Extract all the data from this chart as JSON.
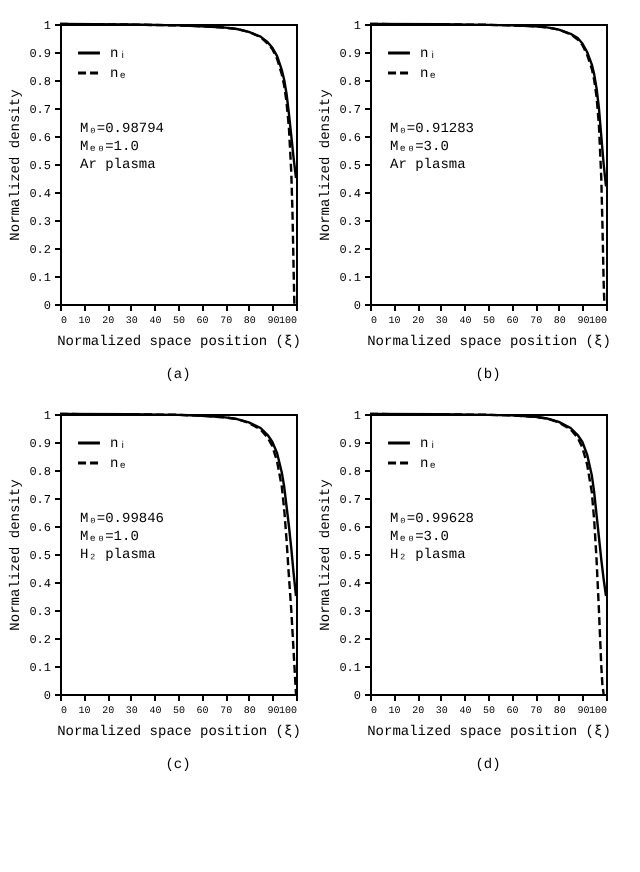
{
  "chart_data": [
    {
      "type": "line",
      "title": "(a)",
      "xlabel": "Normalized space position (ξ)",
      "ylabel": "Normalized density",
      "annotations": [
        "M₀=0.98794",
        "Mₑ₀=1.0",
        "Ar plasma"
      ],
      "xlim": [
        0,
        100
      ],
      "ylim": [
        0,
        1
      ],
      "xticks": [
        0,
        10,
        20,
        30,
        40,
        50,
        60,
        70,
        80,
        90,
        100
      ],
      "yticks": [
        0,
        0.1,
        0.2,
        0.3,
        0.4,
        0.5,
        0.6,
        0.7,
        0.8,
        0.9,
        1
      ],
      "grid": false,
      "legend": "top left",
      "marker": "none",
      "series": [
        {
          "name": "nᵢ",
          "color": "#000000",
          "line_style": "solid",
          "x": [
            0,
            30,
            50,
            60,
            70,
            75,
            80,
            85,
            88,
            90,
            92,
            94,
            95,
            96,
            97,
            98,
            99,
            100
          ],
          "values": [
            1,
            0.998,
            0.995,
            0.992,
            0.987,
            0.982,
            0.972,
            0.955,
            0.935,
            0.915,
            0.885,
            0.835,
            0.8,
            0.75,
            0.68,
            0.6,
            0.52,
            0.45
          ]
        },
        {
          "name": "nₑ",
          "color": "#000000",
          "line_style": "dashed",
          "x": [
            0,
            30,
            50,
            60,
            70,
            75,
            80,
            85,
            88,
            90,
            92,
            94,
            95,
            96,
            97,
            98,
            98.5,
            99,
            99.3
          ],
          "values": [
            1,
            0.998,
            0.995,
            0.992,
            0.987,
            0.982,
            0.972,
            0.953,
            0.93,
            0.91,
            0.875,
            0.82,
            0.78,
            0.72,
            0.63,
            0.47,
            0.33,
            0.12,
            0
          ]
        }
      ]
    },
    {
      "type": "line",
      "title": "(b)",
      "xlabel": "Normalized space position (ξ)",
      "ylabel": "Normalized density",
      "annotations": [
        "M₀=0.91283",
        "Mₑ₀=3.0",
        "Ar plasma"
      ],
      "xlim": [
        0,
        100
      ],
      "ylim": [
        0,
        1
      ],
      "xticks": [
        0,
        10,
        20,
        30,
        40,
        50,
        60,
        70,
        80,
        90,
        100
      ],
      "yticks": [
        0,
        0.1,
        0.2,
        0.3,
        0.4,
        0.5,
        0.6,
        0.7,
        0.8,
        0.9,
        1
      ],
      "grid": false,
      "legend": "top left",
      "marker": "none",
      "series": [
        {
          "name": "nᵢ",
          "color": "#000000",
          "line_style": "solid",
          "x": [
            0,
            30,
            50,
            60,
            70,
            75,
            80,
            85,
            88,
            90,
            92,
            94,
            95,
            96,
            97,
            98,
            99,
            100
          ],
          "values": [
            1,
            0.999,
            0.997,
            0.995,
            0.992,
            0.988,
            0.98,
            0.965,
            0.95,
            0.93,
            0.9,
            0.855,
            0.82,
            0.77,
            0.7,
            0.6,
            0.5,
            0.42
          ]
        },
        {
          "name": "nₑ",
          "color": "#000000",
          "line_style": "dashed",
          "x": [
            0,
            30,
            50,
            60,
            70,
            75,
            80,
            85,
            88,
            90,
            92,
            94,
            95,
            96,
            97,
            98,
            98.5,
            99,
            99.3
          ],
          "values": [
            1,
            0.999,
            0.997,
            0.995,
            0.992,
            0.988,
            0.98,
            0.963,
            0.945,
            0.925,
            0.89,
            0.84,
            0.8,
            0.74,
            0.64,
            0.45,
            0.28,
            0.08,
            0
          ]
        }
      ]
    },
    {
      "type": "line",
      "title": "(c)",
      "xlabel": "Normalized space position (ξ)",
      "ylabel": "Normalized density",
      "annotations": [
        "M₀=0.99846",
        "Mₑ₀=1.0",
        "H₂ plasma"
      ],
      "xlim": [
        0,
        100
      ],
      "ylim": [
        0,
        1
      ],
      "xticks": [
        0,
        10,
        20,
        30,
        40,
        50,
        60,
        70,
        80,
        90,
        100
      ],
      "yticks": [
        0,
        0.1,
        0.2,
        0.3,
        0.4,
        0.5,
        0.6,
        0.7,
        0.8,
        0.9,
        1
      ],
      "grid": false,
      "legend": "top left",
      "marker": "none",
      "series": [
        {
          "name": "nᵢ",
          "color": "#000000",
          "line_style": "solid",
          "x": [
            0,
            30,
            50,
            60,
            70,
            75,
            80,
            85,
            88,
            90,
            92,
            94,
            95,
            96,
            97,
            98,
            99,
            100
          ],
          "values": [
            1,
            0.999,
            0.997,
            0.994,
            0.988,
            0.982,
            0.97,
            0.95,
            0.925,
            0.9,
            0.86,
            0.79,
            0.74,
            0.67,
            0.6,
            0.52,
            0.43,
            0.35
          ]
        },
        {
          "name": "nₑ",
          "color": "#000000",
          "line_style": "dashed",
          "x": [
            0,
            30,
            50,
            60,
            70,
            75,
            80,
            85,
            88,
            90,
            92,
            94,
            95,
            96,
            97,
            98,
            99,
            100
          ],
          "values": [
            1,
            0.999,
            0.997,
            0.994,
            0.988,
            0.982,
            0.968,
            0.945,
            0.915,
            0.885,
            0.83,
            0.74,
            0.66,
            0.55,
            0.42,
            0.3,
            0.15,
            0
          ]
        }
      ]
    },
    {
      "type": "line",
      "title": "(d)",
      "xlabel": "Normalized space position (ξ)",
      "ylabel": "Normalized density",
      "annotations": [
        "M₀=0.99628",
        "Mₑ₀=3.0",
        "H₂ plasma"
      ],
      "xlim": [
        0,
        100
      ],
      "ylim": [
        0,
        1
      ],
      "xticks": [
        0,
        10,
        20,
        30,
        40,
        50,
        60,
        70,
        80,
        90,
        100
      ],
      "yticks": [
        0,
        0.1,
        0.2,
        0.3,
        0.4,
        0.5,
        0.6,
        0.7,
        0.8,
        0.9,
        1
      ],
      "grid": false,
      "legend": "top left",
      "marker": "none",
      "series": [
        {
          "name": "nᵢ",
          "color": "#000000",
          "line_style": "solid",
          "x": [
            0,
            30,
            50,
            60,
            70,
            75,
            80,
            85,
            88,
            90,
            92,
            94,
            95,
            96,
            97,
            98,
            99,
            100
          ],
          "values": [
            1,
            0.999,
            0.997,
            0.995,
            0.99,
            0.984,
            0.972,
            0.95,
            0.925,
            0.9,
            0.855,
            0.78,
            0.72,
            0.64,
            0.56,
            0.48,
            0.41,
            0.35
          ]
        },
        {
          "name": "nₑ",
          "color": "#000000",
          "line_style": "dashed",
          "x": [
            0,
            30,
            50,
            60,
            70,
            75,
            80,
            85,
            88,
            90,
            92,
            94,
            95,
            96,
            97,
            98,
            98.5,
            99
          ],
          "values": [
            1,
            0.999,
            0.997,
            0.995,
            0.99,
            0.984,
            0.97,
            0.945,
            0.915,
            0.88,
            0.82,
            0.72,
            0.62,
            0.48,
            0.3,
            0.1,
            0.03,
            0
          ]
        }
      ]
    }
  ]
}
